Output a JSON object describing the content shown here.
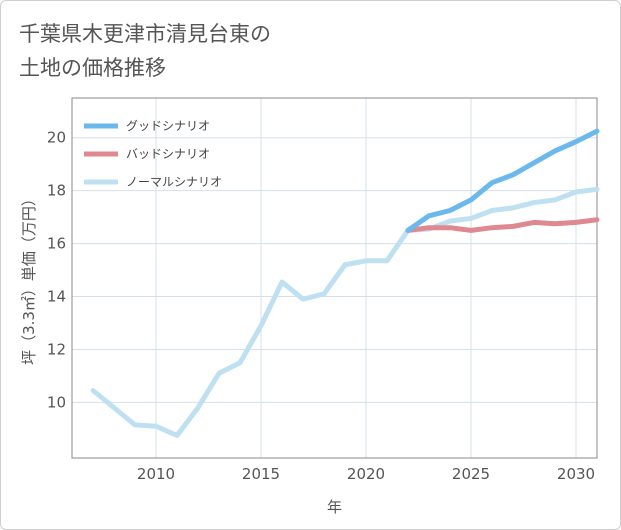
{
  "chart_data": {
    "type": "line",
    "title": [
      "千葉県木更津市清見台東の",
      "土地の価格推移"
    ],
    "xlabel": "年",
    "ylabel": "坪（3.3㎡）単価（万円）",
    "xlim": [
      2006,
      2031
    ],
    "ylim": [
      7.9,
      21.5
    ],
    "xticks": [
      2010,
      2015,
      2020,
      2025,
      2030
    ],
    "yticks": [
      10,
      12,
      14,
      16,
      18,
      20
    ],
    "legend_position": "top-left",
    "series": [
      {
        "name": "グッドシナリオ",
        "color": "#6bb8ec",
        "x": [
          2022,
          2023,
          2024,
          2025,
          2026,
          2027,
          2028,
          2029,
          2030,
          2031
        ],
        "y": [
          16.5,
          17.05,
          17.25,
          17.65,
          18.3,
          18.6,
          19.05,
          19.5,
          19.85,
          20.25
        ]
      },
      {
        "name": "バッドシナリオ",
        "color": "#de8890",
        "x": [
          2022,
          2023,
          2024,
          2025,
          2026,
          2027,
          2028,
          2029,
          2030,
          2031
        ],
        "y": [
          16.5,
          16.6,
          16.6,
          16.5,
          16.6,
          16.65,
          16.8,
          16.75,
          16.8,
          16.9
        ]
      },
      {
        "name": "ノーマルシナリオ",
        "color": "#bfe0f0",
        "x": [
          2007,
          2008,
          2009,
          2010,
          2011,
          2012,
          2013,
          2014,
          2015,
          2016,
          2017,
          2018,
          2019,
          2020,
          2021,
          2022,
          2023,
          2024,
          2025,
          2026,
          2027,
          2028,
          2029,
          2030,
          2031
        ],
        "y": [
          10.45,
          9.8,
          9.15,
          9.1,
          8.75,
          9.8,
          11.1,
          11.5,
          12.9,
          14.55,
          13.9,
          14.1,
          15.2,
          15.35,
          15.35,
          16.5,
          16.55,
          16.85,
          16.95,
          17.25,
          17.35,
          17.55,
          17.65,
          17.95,
          18.05
        ]
      }
    ]
  }
}
